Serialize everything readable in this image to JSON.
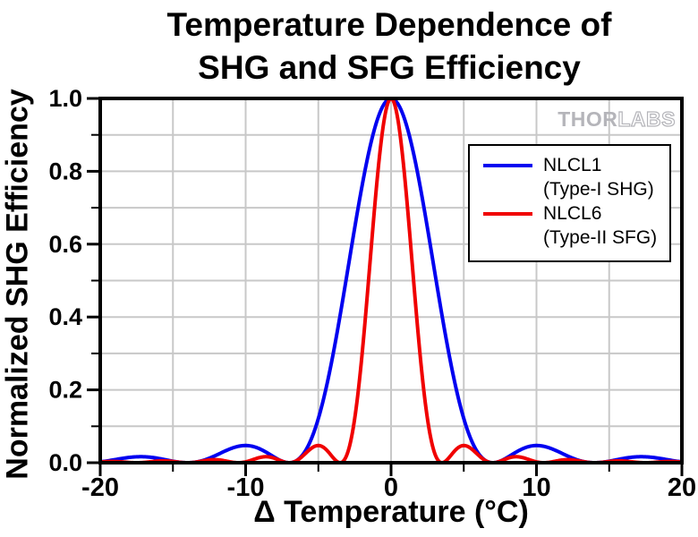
{
  "title": {
    "line1": "Temperature Dependence of",
    "line2": "SHG and SFG Efficiency"
  },
  "axes": {
    "x": {
      "title": "Δ Temperature (°C)"
    },
    "y": {
      "title": "Normalized SHG Efficiency"
    }
  },
  "watermark": {
    "thor": "THOR",
    "labs": "LABS"
  },
  "legend": {
    "position": "upper-right",
    "items": [
      {
        "name": "NLCL1",
        "sub": "(Type-I SHG)",
        "color": "#0000f0"
      },
      {
        "name": "NLCL6",
        "sub": "(Type-II SFG)",
        "color": "#f00000"
      }
    ]
  },
  "chart_data": {
    "type": "line",
    "title": "Temperature Dependence of SHG and SFG Efficiency",
    "xlabel": "Δ Temperature (°C)",
    "ylabel": "Normalized SHG Efficiency",
    "xlim": [
      -20,
      20
    ],
    "ylim": [
      0,
      1.0
    ],
    "x_major_ticks": [
      -20,
      -10,
      0,
      10,
      20
    ],
    "x_major_labels": [
      "-20",
      "-10",
      "0",
      "10",
      "20"
    ],
    "x_minor_ticks": [
      -15,
      -5,
      5,
      15
    ],
    "y_major_ticks": [
      0.0,
      0.2,
      0.4,
      0.6,
      0.8,
      1.0
    ],
    "y_major_labels": [
      "0.0",
      "0.2",
      "0.4",
      "0.6",
      "0.8",
      "1.0"
    ],
    "y_minor_ticks": [
      0.1,
      0.3,
      0.5,
      0.7,
      0.9
    ],
    "grid": {
      "on": true,
      "x_step": 5,
      "y_step": 0.1,
      "color": "#c8c8c8"
    },
    "frame_color": "#000000",
    "series": [
      {
        "name": "NLCL1",
        "label": "NLCL1 (Type-I SHG)",
        "color": "#0000f0",
        "model": "sinc_squared",
        "first_zero_deg": 7,
        "peak": {
          "x": 0,
          "y": 1.0
        },
        "x": [
          -20,
          -19,
          -18,
          -17,
          -16,
          -15,
          -14,
          -13,
          -12,
          -11,
          -10,
          -9,
          -8,
          -7,
          -6,
          -5,
          -4,
          -3,
          -2,
          -1,
          0,
          1,
          2,
          3,
          4,
          5,
          6,
          7,
          8,
          9,
          10,
          11,
          12,
          13,
          14,
          15,
          16,
          17,
          18,
          19,
          20
        ],
        "y": [
          0.002,
          0.008,
          0.015,
          0.016,
          0.012,
          0.004,
          0,
          0.006,
          0.021,
          0.039,
          0.047,
          0.037,
          0.015,
          0,
          0.026,
          0.121,
          0.295,
          0.524,
          0.759,
          0.935,
          1,
          0.935,
          0.759,
          0.524,
          0.295,
          0.121,
          0.026,
          0,
          0.015,
          0.037,
          0.047,
          0.039,
          0.021,
          0.006,
          0,
          0.004,
          0.012,
          0.016,
          0.015,
          0.008,
          0.002
        ]
      },
      {
        "name": "NLCL6",
        "label": "NLCL6 (Type-II SFG)",
        "color": "#f00000",
        "model": "sinc_squared",
        "first_zero_deg": 3.5,
        "peak": {
          "x": 0,
          "y": 1.0
        },
        "x": [
          -20,
          -19,
          -18,
          -17,
          -16,
          -15,
          -14,
          -13,
          -12,
          -11,
          -10,
          -9,
          -8,
          -7,
          -6,
          -5,
          -4,
          -3,
          -2,
          -1,
          0,
          1,
          2,
          3,
          4,
          5,
          6,
          7,
          8,
          9,
          10,
          11,
          12,
          13,
          14,
          15,
          16,
          17,
          18,
          19,
          20
        ],
        "y": [
          0.002,
          0.003,
          0.001,
          0.001,
          0.005,
          0.003,
          0,
          0.005,
          0.008,
          0.002,
          0.002,
          0.015,
          0.012,
          0,
          0.021,
          0.047,
          0.015,
          0.026,
          0.295,
          0.759,
          1,
          0.759,
          0.295,
          0.026,
          0.015,
          0.047,
          0.021,
          0,
          0.012,
          0.015,
          0.002,
          0.002,
          0.008,
          0.005,
          0,
          0.003,
          0.005,
          0.001,
          0.001,
          0.003,
          0.002
        ]
      }
    ]
  }
}
